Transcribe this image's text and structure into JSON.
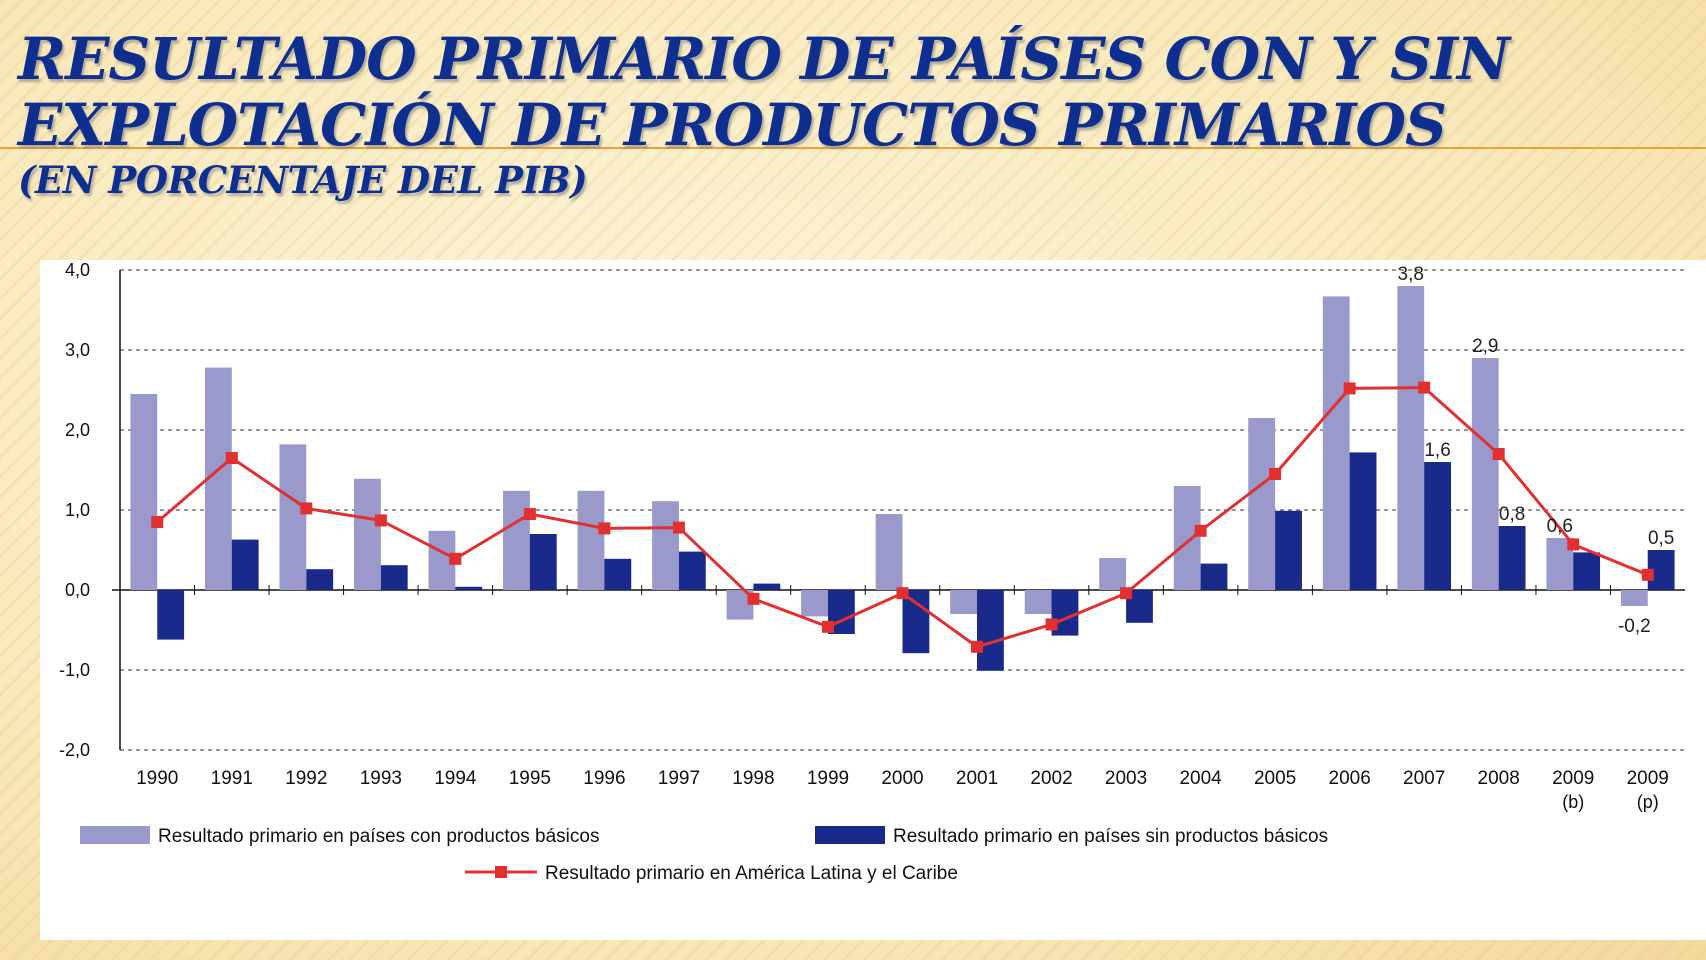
{
  "slide": {
    "title_line1": "Resultado primario de países con y sin",
    "title_line2": "explotación de productos primarios",
    "title_line3": "(en porcentaje del PIB)"
  },
  "chart_data": {
    "type": "bar",
    "title": "",
    "xlabel": "",
    "ylabel": "",
    "ylim": [
      -2,
      4
    ],
    "yticks": [
      "4,0",
      "3,0",
      "2,0",
      "1,0",
      "0,0",
      "-1,0",
      "-2,0"
    ],
    "ytick_values": [
      4,
      3,
      2,
      1,
      0,
      -1,
      -2
    ],
    "grid": "horizontal-dashed",
    "legend_position": "bottom",
    "categories": [
      "1990",
      "1991",
      "1992",
      "1993",
      "1994",
      "1995",
      "1996",
      "1997",
      "1998",
      "1999",
      "2000",
      "2001",
      "2002",
      "2003",
      "2004",
      "2005",
      "2006",
      "2007",
      "2008",
      "2009",
      "2009"
    ],
    "category_sublabels": [
      "",
      "",
      "",
      "",
      "",
      "",
      "",
      "",
      "",
      "",
      "",
      "",
      "",
      "",
      "",
      "",
      "",
      "",
      "",
      "(b)",
      "(p)"
    ],
    "series": [
      {
        "name": "Resultado primario en países con productos básicos",
        "kind": "bar",
        "color": "#9999cc",
        "values": [
          2.45,
          2.78,
          1.82,
          1.39,
          0.74,
          1.24,
          1.24,
          1.11,
          -0.37,
          -0.33,
          0.95,
          -0.3,
          -0.3,
          0.4,
          1.3,
          2.15,
          3.67,
          3.8,
          2.9,
          0.65,
          -0.2
        ]
      },
      {
        "name": "Resultado primario en países sin productos básicos",
        "kind": "bar",
        "color": "#1a2a8a",
        "values": [
          -0.62,
          0.63,
          0.26,
          0.31,
          0.04,
          0.7,
          0.39,
          0.48,
          0.08,
          -0.55,
          -0.79,
          -1.01,
          -0.57,
          -0.41,
          0.33,
          0.99,
          1.72,
          1.6,
          0.8,
          0.47,
          0.5
        ]
      },
      {
        "name": "Resultado primario en América Latina y el Caribe",
        "kind": "line",
        "color": "#e03030",
        "values": [
          0.85,
          1.65,
          1.02,
          0.87,
          0.39,
          0.95,
          0.77,
          0.78,
          -0.11,
          -0.46,
          -0.04,
          -0.71,
          -0.43,
          -0.04,
          0.74,
          1.45,
          2.52,
          2.53,
          1.7,
          0.57,
          0.19
        ]
      }
    ],
    "annotations": [
      {
        "category_index": 17,
        "series": 0,
        "text": "3,8"
      },
      {
        "category_index": 18,
        "series": 0,
        "text": "2,9"
      },
      {
        "category_index": 17,
        "series": 1,
        "text": "1,6"
      },
      {
        "category_index": 18,
        "series": 1,
        "text": "0,8"
      },
      {
        "category_index": 19,
        "series": 0,
        "text": "0,6"
      },
      {
        "category_index": 20,
        "series": 1,
        "text": "0,5"
      },
      {
        "category_index": 20,
        "series": 0,
        "text": "-0,2"
      }
    ]
  }
}
